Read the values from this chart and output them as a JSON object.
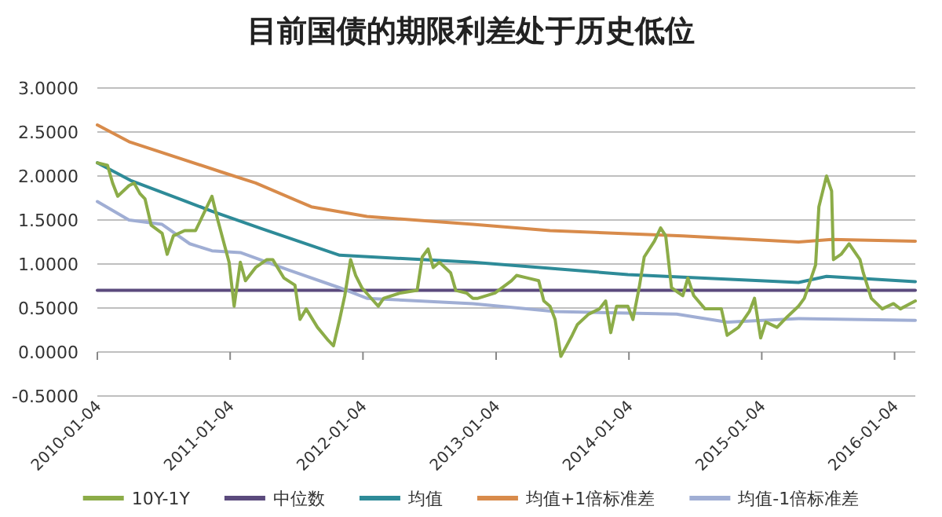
{
  "chart_data": {
    "type": "line",
    "title": "目前国债的期限利差处于历史低位",
    "xlim": [
      "2010-01-04",
      "2016-03-01"
    ],
    "xticks": [
      "2010-01-04",
      "2011-01-04",
      "2012-01-04",
      "2013-01-04",
      "2014-01-04",
      "2015-01-04",
      "2016-01-04"
    ],
    "ylim": [
      -0.5,
      3
    ],
    "yticks": [
      {
        "value": -0.5,
        "label": "-0.5000"
      },
      {
        "value": 0,
        "label": "0.0000"
      },
      {
        "value": 0.5,
        "label": "0.5000"
      },
      {
        "value": 1,
        "label": "1.0000"
      },
      {
        "value": 1.5,
        "label": "1.5000"
      },
      {
        "value": 2,
        "label": "2.0000"
      },
      {
        "value": 2.5,
        "label": "2.5000"
      },
      {
        "value": 3,
        "label": "3.0000"
      }
    ],
    "grid": "y",
    "legend": "bottom",
    "series": [
      {
        "name": "10Y-1Y",
        "color": "#8cac48",
        "x": [
          "2010-01-04",
          "2010-02-01",
          "2010-02-15",
          "2010-03-01",
          "2010-04-01",
          "2010-04-15",
          "2010-05-01",
          "2010-05-15",
          "2010-06-01",
          "2010-07-01",
          "2010-07-15",
          "2010-08-01",
          "2010-09-01",
          "2010-10-01",
          "2010-10-15",
          "2010-11-15",
          "2010-12-01",
          "2011-01-01",
          "2011-01-15",
          "2011-02-01",
          "2011-02-15",
          "2011-03-15",
          "2011-04-15",
          "2011-05-01",
          "2011-06-01",
          "2011-07-01",
          "2011-07-15",
          "2011-08-01",
          "2011-09-01",
          "2011-10-01",
          "2011-10-15",
          "2011-11-01",
          "2011-11-15",
          "2011-12-01",
          "2011-12-15",
          "2012-01-01",
          "2012-02-15",
          "2012-03-01",
          "2012-04-15",
          "2012-06-01",
          "2012-06-15",
          "2012-07-01",
          "2012-07-15",
          "2012-08-01",
          "2012-09-01",
          "2012-09-15",
          "2012-10-15",
          "2012-11-01",
          "2012-11-15",
          "2013-01-01",
          "2013-02-15",
          "2013-03-01",
          "2013-04-01",
          "2013-05-01",
          "2013-05-15",
          "2013-06-01",
          "2013-06-15",
          "2013-07-01",
          "2013-08-01",
          "2013-08-15",
          "2013-09-15",
          "2013-10-15",
          "2013-11-01",
          "2013-11-15",
          "2013-12-01",
          "2014-01-01",
          "2014-01-15",
          "2014-02-01",
          "2014-02-15",
          "2014-03-15",
          "2014-04-01",
          "2014-04-15",
          "2014-05-01",
          "2014-06-01",
          "2014-06-15",
          "2014-07-01",
          "2014-08-01",
          "2014-09-15",
          "2014-10-01",
          "2014-11-01",
          "2014-12-01",
          "2014-12-15",
          "2015-01-01",
          "2015-01-15",
          "2015-02-15",
          "2015-03-15",
          "2015-04-15",
          "2015-05-01",
          "2015-06-01",
          "2015-06-10",
          "2015-07-01",
          "2015-07-15",
          "2015-07-20",
          "2015-08-10",
          "2015-09-01",
          "2015-10-01",
          "2015-10-10",
          "2015-11-01",
          "2015-12-01",
          "2016-01-01",
          "2016-01-20",
          "2016-03-01"
        ],
        "values": [
          2.15,
          2.12,
          1.92,
          1.77,
          1.89,
          1.92,
          1.8,
          1.74,
          1.44,
          1.35,
          1.11,
          1.32,
          1.38,
          1.38,
          1.5,
          1.77,
          1.5,
          1.02,
          0.52,
          1.02,
          0.81,
          0.96,
          1.05,
          1.05,
          0.84,
          0.76,
          0.37,
          0.49,
          0.28,
          0.13,
          0.07,
          0.37,
          0.64,
          1.05,
          0.87,
          0.73,
          0.52,
          0.61,
          0.67,
          0.7,
          1.08,
          1.17,
          0.96,
          1.02,
          0.9,
          0.7,
          0.67,
          0.61,
          0.61,
          0.67,
          0.81,
          0.87,
          0.84,
          0.81,
          0.58,
          0.52,
          0.37,
          -0.05,
          0.19,
          0.31,
          0.43,
          0.49,
          0.58,
          0.22,
          0.52,
          0.52,
          0.37,
          0.73,
          1.08,
          1.26,
          1.41,
          1.32,
          0.73,
          0.64,
          0.84,
          0.64,
          0.49,
          0.49,
          0.19,
          0.28,
          0.46,
          0.61,
          0.16,
          0.34,
          0.28,
          0.4,
          0.52,
          0.61,
          0.99,
          1.65,
          2.0,
          1.83,
          1.05,
          1.11,
          1.23,
          1.05,
          0.9,
          0.61,
          0.49,
          0.55,
          0.49,
          0.58
        ]
      },
      {
        "name": "中位数",
        "color": "#5b4a7d",
        "x": [
          "2010-01-04",
          "2016-03-01"
        ],
        "values": [
          0.7,
          0.7
        ]
      },
      {
        "name": "均值",
        "color": "#2e8b98",
        "x": [
          "2010-01-04",
          "2010-04-05",
          "2010-11-15",
          "2011-04-01",
          "2011-11-01",
          "2012-11-01",
          "2013-04-01",
          "2014-01-01",
          "2015-04-15",
          "2015-07-01",
          "2016-03-01"
        ],
        "values": [
          2.15,
          1.95,
          1.6,
          1.4,
          1.1,
          1.02,
          0.97,
          0.88,
          0.79,
          0.86,
          0.8
        ]
      },
      {
        "name": "均值+1倍标准差",
        "color": "#d88b4b",
        "x": [
          "2010-01-04",
          "2010-04-01",
          "2010-12-15",
          "2011-03-15",
          "2011-08-15",
          "2012-01-15",
          "2012-11-01",
          "2013-06-01",
          "2014-06-01",
          "2015-04-15",
          "2015-07-15",
          "2016-03-01"
        ],
        "values": [
          2.58,
          2.39,
          2.04,
          1.92,
          1.65,
          1.54,
          1.45,
          1.38,
          1.32,
          1.25,
          1.28,
          1.26
        ]
      },
      {
        "name": "均值-1倍标准差",
        "color": "#a0aed4",
        "x": [
          "2010-01-04",
          "2010-04-01",
          "2010-07-01",
          "2010-09-15",
          "2010-11-15",
          "2011-02-01",
          "2011-06-15",
          "2011-11-01",
          "2012-01-15",
          "2012-11-01",
          "2013-06-15",
          "2014-05-15",
          "2014-10-01",
          "2015-04-15",
          "2016-03-01"
        ],
        "values": [
          1.71,
          1.5,
          1.45,
          1.23,
          1.15,
          1.13,
          0.93,
          0.73,
          0.61,
          0.55,
          0.46,
          0.43,
          0.34,
          0.38,
          0.36
        ]
      }
    ]
  }
}
